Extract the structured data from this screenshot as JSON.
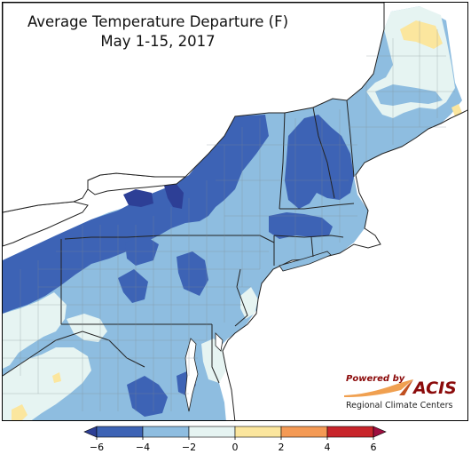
{
  "title": "Average Temperature Departure (F)",
  "subtitle": "May 1-15, 2017",
  "logo": {
    "powered_by": "Powered by",
    "brand": "ACIS",
    "org": "Regional Climate Centers"
  },
  "legend": {
    "ticks": [
      "−6",
      "−4",
      "−2",
      "0",
      "2",
      "4",
      "6"
    ],
    "bins": [
      {
        "range": [
          -6,
          -4
        ],
        "color": "#3d63b5"
      },
      {
        "range": [
          -4,
          -2
        ],
        "color": "#8ebde0"
      },
      {
        "range": [
          -2,
          0
        ],
        "color": "#e6f4f2"
      },
      {
        "range": [
          0,
          2
        ],
        "color": "#fbe69e"
      },
      {
        "range": [
          2,
          4
        ],
        "color": "#f49a55"
      },
      {
        "range": [
          4,
          6
        ],
        "color": "#c8252b"
      }
    ],
    "under_color": "#2d3f96",
    "over_color": "#9e0f40"
  },
  "colors": {
    "water": "#ffffff",
    "boundary": "#222222",
    "county": "#7d8c8f"
  }
}
